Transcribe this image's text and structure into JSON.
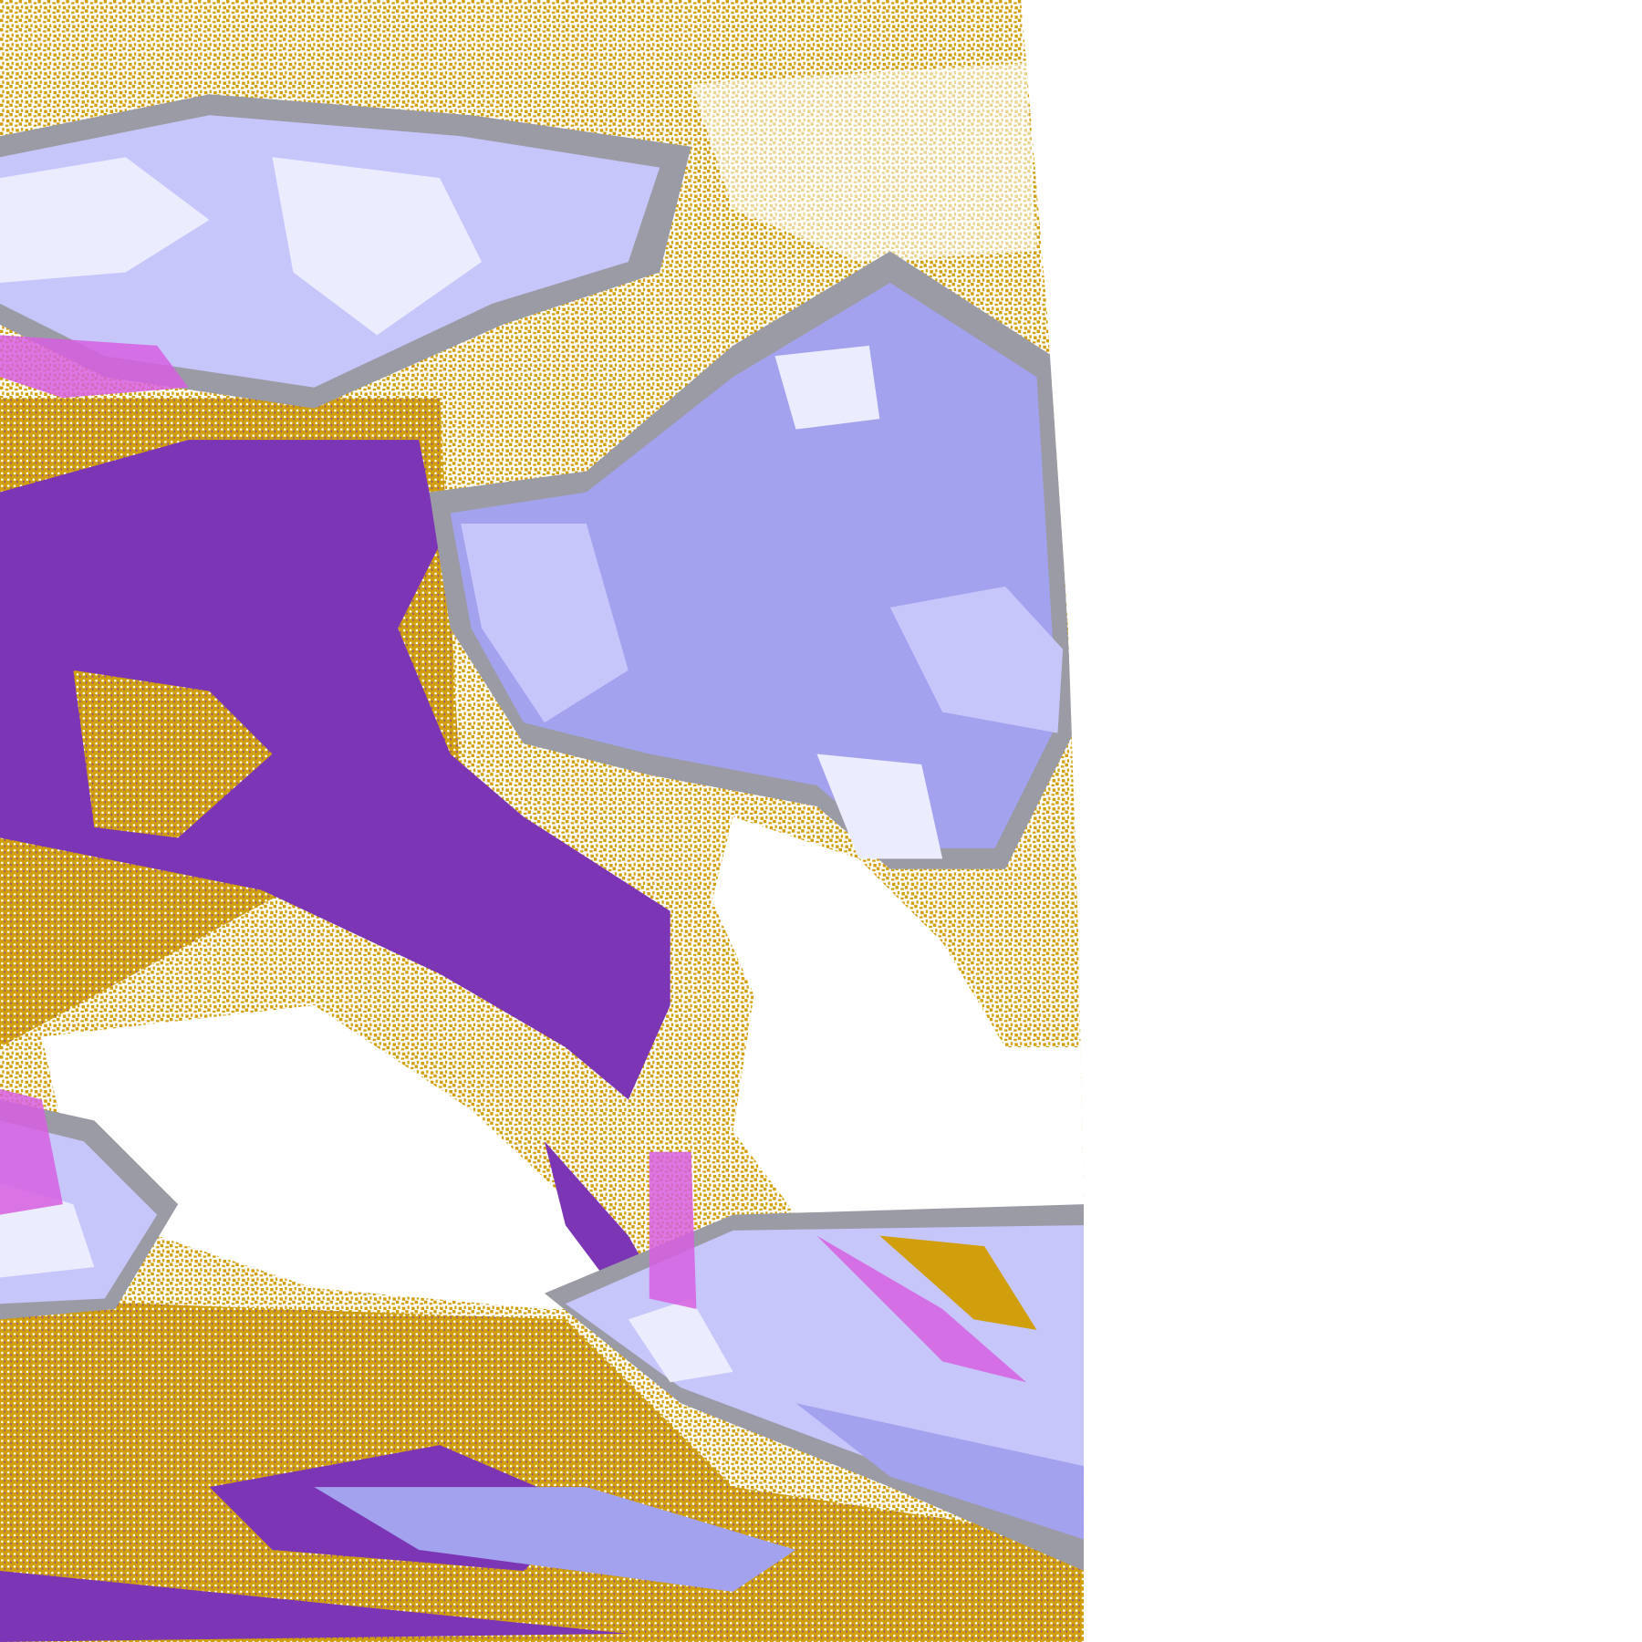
{
  "map": {
    "palette": {
      "background": "#ffffff",
      "gold": "#d19f0c",
      "purple": "#7c35b4",
      "magenta": "#d75fe0",
      "lavender": "#c6c6fb",
      "pale_lavender": "#ececff",
      "periwinkle": "#a2a2ee",
      "gray": "#9b9ba6"
    }
  }
}
